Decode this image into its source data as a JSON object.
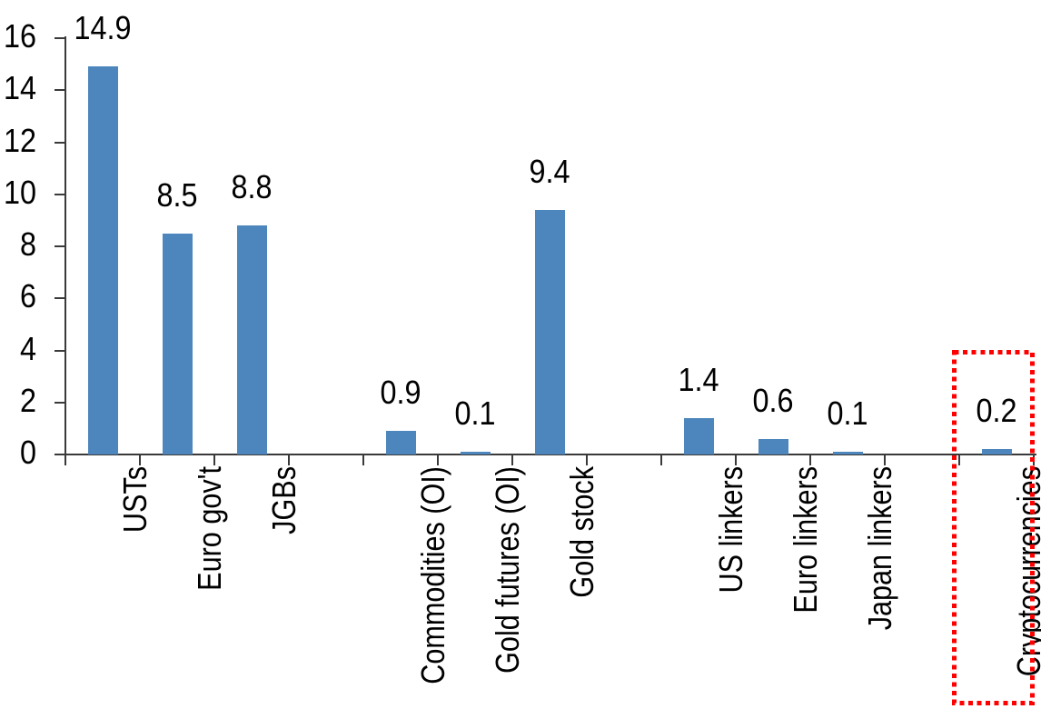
{
  "chart_data": {
    "type": "bar",
    "title": "",
    "xlabel": "",
    "ylabel": "",
    "categories": [
      "USTs",
      "Euro gov't",
      "JGBs",
      "Commodities (OI)",
      "Gold futures (OI)",
      "Gold stock",
      "US linkers",
      "Euro linkers",
      "Japan linkers",
      "Cryptocurrencies"
    ],
    "values": [
      14.9,
      8.5,
      8.8,
      0.9,
      0.1,
      9.4,
      1.4,
      0.6,
      0.1,
      0.2
    ],
    "data_labels": [
      "14.9",
      "8.5",
      "8.8",
      "0.9",
      "0.1",
      "9.4",
      "1.4",
      "0.6",
      "0.1",
      "0.2"
    ],
    "slot_indices": [
      0,
      1,
      2,
      4,
      5,
      6,
      8,
      9,
      10,
      12
    ],
    "total_slots": 13,
    "group_gaps_after": [
      "JGBs",
      "Gold stock",
      "Japan linkers"
    ],
    "ylim": [
      0,
      16
    ],
    "yticks": [
      0,
      2,
      4,
      6,
      8,
      10,
      12,
      14,
      16
    ],
    "grid": "off",
    "legend": "none",
    "bar_color": "#4d86bc",
    "axis_color": "#3a3a3a",
    "text_color": "#000000",
    "highlight": {
      "category": "Cryptocurrencies",
      "style": "dotted-box",
      "color": "#ff0000"
    }
  }
}
